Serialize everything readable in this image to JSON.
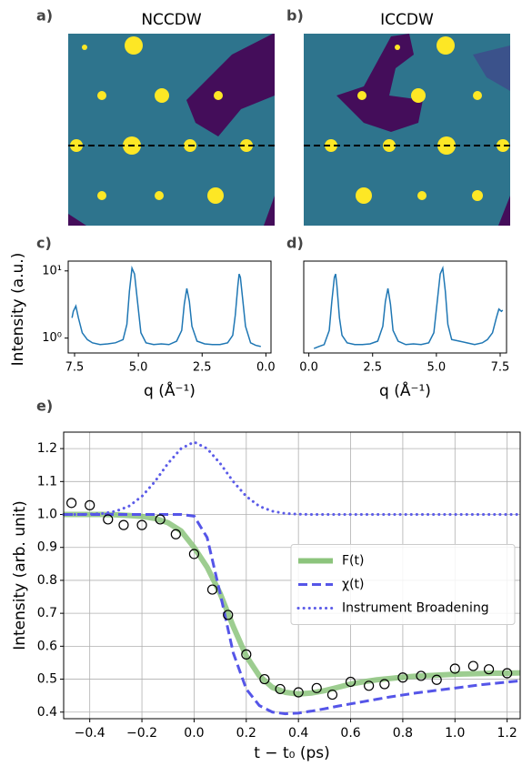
{
  "chart_data": [
    {
      "type": "image",
      "label": "a)",
      "title": "NCCDW"
    },
    {
      "type": "image",
      "label": "b)",
      "title": "ICCDW"
    },
    {
      "type": "line",
      "label": "c)",
      "ylabel": "Intensity (a.u.)",
      "xlabel": "q (Å⁻¹)",
      "log_y": true,
      "xlim": [
        7.75,
        -0.2
      ],
      "ylim": [
        0.6,
        14
      ],
      "xticks": [
        7.5,
        {
          "value": 5,
          "label": "5.0"
        },
        2.5,
        {
          "value": 0,
          "label": "0.0"
        }
      ],
      "yticks": [
        {
          "value": 1,
          "label": "10⁰"
        },
        {
          "value": 10,
          "label": "10¹"
        }
      ],
      "x": [
        0.2,
        0.4,
        0.6,
        0.8,
        0.9,
        1.0,
        1.05,
        1.1,
        1.2,
        1.3,
        1.5,
        1.8,
        2.1,
        2.4,
        2.7,
        2.9,
        3.0,
        3.1,
        3.2,
        3.3,
        3.5,
        3.8,
        4.1,
        4.4,
        4.7,
        4.9,
        5.05,
        5.15,
        5.25,
        5.35,
        5.45,
        5.6,
        5.9,
        6.2,
        6.5,
        6.8,
        7.0,
        7.2,
        7.35,
        7.45,
        7.55,
        7.6
      ],
      "series": [
        {
          "color": "#1f77b4",
          "values": [
            0.75,
            0.78,
            0.85,
            1.5,
            3.5,
            8,
            9,
            6,
            2.2,
            1.1,
            0.85,
            0.8,
            0.8,
            0.82,
            0.9,
            1.5,
            3.5,
            5.5,
            3.2,
            1.3,
            0.9,
            0.8,
            0.82,
            0.8,
            0.85,
            1.2,
            4,
            9,
            11,
            5,
            1.6,
            0.95,
            0.85,
            0.82,
            0.8,
            0.85,
            0.95,
            1.2,
            2,
            3,
            2.5,
            2
          ]
        }
      ]
    },
    {
      "type": "line",
      "label": "d)",
      "xlabel": "q (Å⁻¹)",
      "log_y": true,
      "xlim": [
        -0.2,
        7.75
      ],
      "ylim": [
        0.6,
        14
      ],
      "xticks": [
        {
          "value": 0,
          "label": "0.0"
        },
        2.5,
        {
          "value": 5,
          "label": "5.0"
        },
        7.5
      ],
      "yticks": [],
      "x": [
        0.2,
        0.4,
        0.6,
        0.8,
        0.9,
        1.0,
        1.05,
        1.1,
        1.2,
        1.3,
        1.5,
        1.8,
        2.1,
        2.4,
        2.7,
        2.9,
        3.0,
        3.1,
        3.2,
        3.3,
        3.5,
        3.8,
        4.1,
        4.4,
        4.7,
        4.9,
        5.05,
        5.15,
        5.25,
        5.35,
        5.45,
        5.6,
        5.9,
        6.2,
        6.5,
        6.8,
        7.0,
        7.2,
        7.35,
        7.45,
        7.55,
        7.6
      ],
      "series": [
        {
          "color": "#1f77b4",
          "values": [
            0.7,
            0.75,
            0.8,
            1.3,
            3.5,
            8,
            9,
            6,
            2,
            1.1,
            0.85,
            0.8,
            0.8,
            0.82,
            0.9,
            1.5,
            3.5,
            5.5,
            3.2,
            1.3,
            0.9,
            0.8,
            0.82,
            0.8,
            0.85,
            1.2,
            4,
            9,
            11,
            5,
            1.6,
            0.95,
            0.9,
            0.85,
            0.8,
            0.85,
            0.95,
            1.2,
            2,
            2.7,
            2.5,
            2.6
          ]
        }
      ]
    },
    {
      "type": "line",
      "label": "e)",
      "ylabel": "Intensity (arb. unit)",
      "xlabel": "t − t₀ (ps)",
      "grid": true,
      "legend": "center right",
      "xlim": [
        -0.5,
        1.25
      ],
      "ylim": [
        0.38,
        1.25
      ],
      "xticks": [
        {
          "value": -0.4,
          "label": "−0.4"
        },
        {
          "value": -0.2,
          "label": "−0.2"
        },
        {
          "value": 0,
          "label": "0.0"
        },
        0.2,
        0.4,
        0.6,
        0.8,
        {
          "value": 1,
          "label": "1.0"
        },
        1.2
      ],
      "yticks": [
        0.4,
        0.5,
        0.6,
        0.7,
        0.8,
        0.9,
        {
          "value": 1,
          "label": "1.0"
        },
        1.1,
        1.2
      ],
      "x": [
        -0.5,
        -0.45,
        -0.4,
        -0.35,
        -0.3,
        -0.25,
        -0.2,
        -0.15,
        -0.1,
        -0.05,
        0,
        0.05,
        0.1,
        0.15,
        0.2,
        0.25,
        0.3,
        0.35,
        0.4,
        0.45,
        0.5,
        0.55,
        0.6,
        0.65,
        0.7,
        0.75,
        0.8,
        0.85,
        0.9,
        0.95,
        1.0,
        1.05,
        1.1,
        1.15,
        1.2,
        1.25
      ],
      "series": [
        {
          "name": "F(t)",
          "color": "#8cc47c",
          "style": "solid",
          "values": [
            1.0,
            1.0,
            1.0,
            1.0,
            0.999,
            0.997,
            0.994,
            0.988,
            0.975,
            0.95,
            0.9,
            0.84,
            0.76,
            0.66,
            0.57,
            0.51,
            0.475,
            0.46,
            0.455,
            0.458,
            0.465,
            0.475,
            0.485,
            0.492,
            0.498,
            0.502,
            0.506,
            0.509,
            0.511,
            0.513,
            0.515,
            0.516,
            0.517,
            0.518,
            0.518,
            0.519
          ]
        },
        {
          "name": "χ(t)",
          "color": "#5555e8",
          "style": "dashed",
          "values": [
            1.0,
            1.0,
            1.0,
            1.0,
            1.0,
            1.0,
            1.0,
            1.0,
            1.0,
            1.0,
            0.995,
            0.93,
            0.76,
            0.58,
            0.47,
            0.42,
            0.4,
            0.395,
            0.397,
            0.403,
            0.41,
            0.418,
            0.425,
            0.432,
            0.439,
            0.446,
            0.452,
            0.458,
            0.463,
            0.468,
            0.473,
            0.478,
            0.483,
            0.487,
            0.491,
            0.495
          ]
        },
        {
          "name": "Instrument Broadening",
          "color": "#5b5be8",
          "style": "dotted",
          "values": [
            1.0,
            1.0,
            1.001,
            1.003,
            1.01,
            1.025,
            1.055,
            1.1,
            1.155,
            1.2,
            1.22,
            1.2,
            1.155,
            1.1,
            1.055,
            1.025,
            1.01,
            1.003,
            1.001,
            1.0,
            1.0,
            1.0,
            1.0,
            1.0,
            1.0,
            1.0,
            1.0,
            1.0,
            1.0,
            1.0,
            1.0,
            1.0,
            1.0,
            1.0,
            1.0,
            1.0
          ]
        },
        {
          "color": "#000000",
          "style": "markers",
          "x": [
            -0.47,
            -0.4,
            -0.33,
            -0.27,
            -0.2,
            -0.13,
            -0.07,
            0.0,
            0.07,
            0.13,
            0.2,
            0.27,
            0.33,
            0.4,
            0.47,
            0.53,
            0.6,
            0.67,
            0.73,
            0.8,
            0.87,
            0.93,
            1.0,
            1.07,
            1.13,
            1.2
          ],
          "values": [
            1.035,
            1.028,
            0.985,
            0.968,
            0.968,
            0.985,
            0.94,
            0.88,
            0.772,
            0.695,
            0.575,
            0.5,
            0.47,
            0.46,
            0.473,
            0.453,
            0.492,
            0.48,
            0.485,
            0.505,
            0.51,
            0.498,
            0.532,
            0.54,
            0.53,
            0.518
          ]
        }
      ]
    }
  ]
}
